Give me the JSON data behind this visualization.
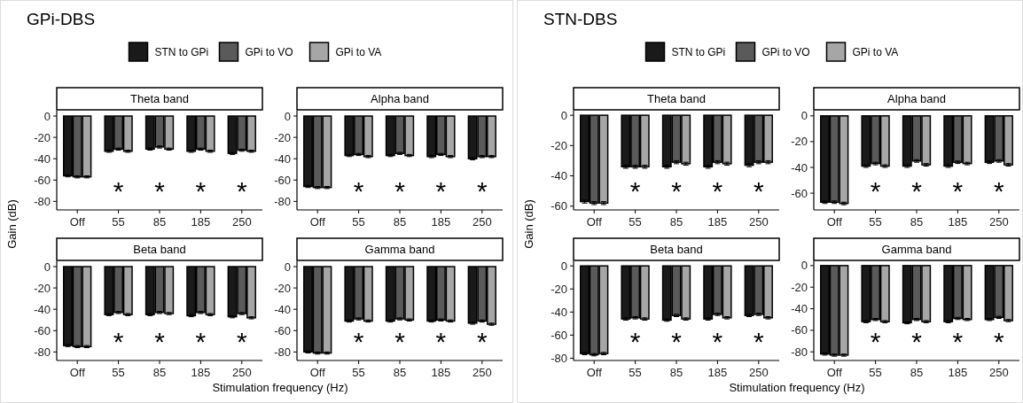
{
  "chart_data": [
    {
      "type": "bar",
      "title": "GPi-DBS",
      "subtitle": "Theta band",
      "ylabel": "Gain (dB)",
      "legend": "top",
      "categories": [
        "Off",
        "55",
        "85",
        "185",
        "250"
      ],
      "ylim": [
        -88,
        5
      ],
      "yticks": [
        0,
        -20,
        -40,
        -60,
        -80
      ],
      "series": [
        {
          "name": "STN to GPi",
          "color": "#1a1a1a",
          "values": [
            -56,
            -33,
            -31,
            -33,
            -35
          ],
          "errors": [
            1,
            1,
            1,
            1,
            1
          ]
        },
        {
          "name": "GPi to VO",
          "color": "#5a5a5a",
          "values": [
            -57,
            -31,
            -29,
            -31,
            -32
          ],
          "errors": [
            1,
            1,
            1,
            1,
            1
          ]
        },
        {
          "name": "GPi to VA",
          "color": "#a6a6a6",
          "values": [
            -57,
            -33,
            -31,
            -33,
            -33
          ],
          "errors": [
            1,
            1,
            1,
            1,
            1
          ]
        }
      ],
      "annotations": [
        "*",
        "*",
        "*",
        "*"
      ]
    },
    {
      "type": "bar",
      "subtitle": "Alpha band",
      "categories": [
        "Off",
        "55",
        "85",
        "185",
        "250"
      ],
      "ylim": [
        -88,
        5
      ],
      "yticks": [
        0,
        -20,
        -40,
        -60,
        -80
      ],
      "series": [
        {
          "color": "#1a1a1a",
          "values": [
            -66,
            -37,
            -37,
            -38,
            -40
          ],
          "errors": [
            1,
            1,
            1,
            1,
            1
          ]
        },
        {
          "color": "#5a5a5a",
          "values": [
            -67,
            -36,
            -35,
            -36,
            -38
          ],
          "errors": [
            1,
            1,
            1,
            1,
            1
          ]
        },
        {
          "color": "#a6a6a6",
          "values": [
            -67,
            -38,
            -37,
            -38,
            -38
          ],
          "errors": [
            1,
            1,
            1,
            1,
            1
          ]
        }
      ],
      "annotations": [
        "*",
        "*",
        "*",
        "*"
      ]
    },
    {
      "type": "bar",
      "subtitle": "Beta band",
      "xlabel": "Stimulation frequency (Hz)",
      "categories": [
        "Off",
        "55",
        "85",
        "185",
        "250"
      ],
      "ylim": [
        -88,
        5
      ],
      "yticks": [
        0,
        -20,
        -40,
        -60,
        -80
      ],
      "series": [
        {
          "color": "#1a1a1a",
          "values": [
            -74,
            -45,
            -45,
            -46,
            -47
          ],
          "errors": [
            1,
            1,
            1,
            1,
            1
          ]
        },
        {
          "color": "#5a5a5a",
          "values": [
            -75,
            -43,
            -43,
            -43,
            -44
          ],
          "errors": [
            1,
            1,
            1,
            1,
            1
          ]
        },
        {
          "color": "#a6a6a6",
          "values": [
            -75,
            -45,
            -44,
            -45,
            -48
          ],
          "errors": [
            1,
            1,
            1,
            1,
            1
          ]
        }
      ],
      "annotations": [
        "*",
        "*",
        "*",
        "*"
      ]
    },
    {
      "type": "bar",
      "subtitle": "Gamma band",
      "categories": [
        "Off",
        "55",
        "85",
        "185",
        "250"
      ],
      "ylim": [
        -88,
        5
      ],
      "yticks": [
        0,
        -20,
        -40,
        -60,
        -80
      ],
      "series": [
        {
          "color": "#1a1a1a",
          "values": [
            -80,
            -51,
            -51,
            -51,
            -53
          ],
          "errors": [
            1,
            1,
            1,
            1,
            1
          ]
        },
        {
          "color": "#5a5a5a",
          "values": [
            -81,
            -49,
            -49,
            -50,
            -51
          ],
          "errors": [
            1,
            1,
            1,
            1,
            1
          ]
        },
        {
          "color": "#a6a6a6",
          "values": [
            -81,
            -51,
            -50,
            -51,
            -54
          ],
          "errors": [
            1,
            1,
            1,
            1,
            1
          ]
        }
      ],
      "annotations": [
        "*",
        "*",
        "*",
        "*"
      ]
    },
    {
      "type": "bar",
      "title": "STN-DBS",
      "subtitle": "Theta band",
      "ylabel": "Gain (dB)",
      "legend": "top",
      "categories": [
        "Off",
        "55",
        "85",
        "185",
        "250"
      ],
      "ylim": [
        -62.5,
        3
      ],
      "yticks": [
        0,
        -20,
        -40,
        -60
      ],
      "series": [
        {
          "name": "STN to GPi",
          "color": "#1a1a1a",
          "values": [
            -57,
            -34,
            -34,
            -34,
            -33
          ],
          "errors": [
            1,
            1,
            1,
            1,
            1
          ]
        },
        {
          "name": "GPi to VO",
          "color": "#5a5a5a",
          "values": [
            -58,
            -34,
            -31,
            -31,
            -31
          ],
          "errors": [
            1,
            1,
            1,
            1,
            1
          ]
        },
        {
          "name": "GPi to VA",
          "color": "#a6a6a6",
          "values": [
            -58,
            -34,
            -32,
            -32,
            -31
          ],
          "errors": [
            1,
            1,
            1,
            1,
            1
          ]
        }
      ],
      "annotations": [
        "*",
        "*",
        "*",
        "*"
      ]
    },
    {
      "type": "bar",
      "subtitle": "Alpha band",
      "categories": [
        "Off",
        "55",
        "85",
        "185",
        "250"
      ],
      "ylim": [
        -73,
        4
      ],
      "yticks": [
        0,
        -20,
        -40,
        -60
      ],
      "series": [
        {
          "color": "#1a1a1a",
          "values": [
            -67,
            -39,
            -39,
            -39,
            -36
          ],
          "errors": [
            1,
            1,
            1,
            1,
            1
          ]
        },
        {
          "color": "#5a5a5a",
          "values": [
            -67,
            -37,
            -35,
            -36,
            -35
          ],
          "errors": [
            1,
            1,
            1,
            1,
            1
          ]
        },
        {
          "color": "#a6a6a6",
          "values": [
            -68,
            -39,
            -38,
            -37,
            -38
          ],
          "errors": [
            1,
            1,
            1,
            1,
            1
          ]
        }
      ],
      "annotations": [
        "*",
        "*",
        "*",
        "*"
      ]
    },
    {
      "type": "bar",
      "subtitle": "Beta band",
      "xlabel": "Stimulation frequency (Hz)",
      "categories": [
        "Off",
        "55",
        "85",
        "185",
        "250"
      ],
      "ylim": [
        -82,
        4
      ],
      "yticks": [
        0,
        -20,
        -40,
        -60,
        -80
      ],
      "series": [
        {
          "color": "#1a1a1a",
          "values": [
            -76,
            -46,
            -47,
            -46,
            -43
          ],
          "errors": [
            1,
            1,
            1,
            1,
            1
          ]
        },
        {
          "color": "#5a5a5a",
          "values": [
            -77,
            -45,
            -43,
            -42,
            -42
          ],
          "errors": [
            1,
            1,
            1,
            1,
            1
          ]
        },
        {
          "color": "#a6a6a6",
          "values": [
            -76,
            -46,
            -46,
            -45,
            -45
          ],
          "errors": [
            1,
            1,
            1,
            1,
            1
          ]
        }
      ],
      "annotations": [
        "*",
        "*",
        "*",
        "*"
      ]
    },
    {
      "type": "bar",
      "subtitle": "Gamma band",
      "categories": [
        "Off",
        "55",
        "85",
        "185",
        "250"
      ],
      "ylim": [
        -88,
        4
      ],
      "yticks": [
        0,
        -20,
        -40,
        -60,
        -80
      ],
      "series": [
        {
          "color": "#1a1a1a",
          "values": [
            -82,
            -52,
            -53,
            -52,
            -50
          ],
          "errors": [
            1,
            1,
            1,
            1,
            1
          ]
        },
        {
          "color": "#5a5a5a",
          "values": [
            -83,
            -50,
            -50,
            -49,
            -48
          ],
          "errors": [
            1,
            1,
            1,
            1,
            1
          ]
        },
        {
          "color": "#a6a6a6",
          "values": [
            -83,
            -52,
            -52,
            -50,
            -51
          ],
          "errors": [
            1,
            1,
            1,
            1,
            1
          ]
        }
      ],
      "annotations": [
        "*",
        "*",
        "*",
        "*"
      ]
    }
  ]
}
